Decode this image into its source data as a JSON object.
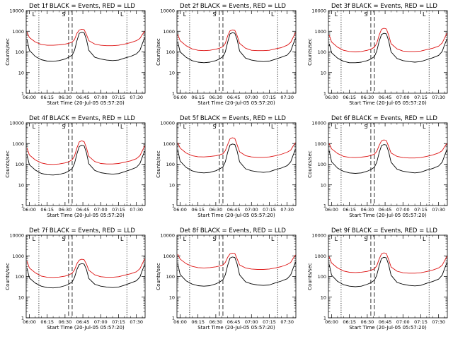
{
  "chart_data": {
    "type": "line",
    "shared": {
      "xlabel": "Start Time (20-Jul-05 05:57:20)",
      "ylabel": "Counts/sec",
      "y_scale": "log",
      "ylim": [
        1,
        10000
      ],
      "y_ticks": [
        1,
        10,
        100,
        1000,
        10000
      ],
      "y_tick_labels": [
        "1",
        "10",
        "100",
        "1000",
        "10000"
      ],
      "xlim": [
        "05:57:20",
        "07:37:20"
      ],
      "x_ticks": [
        "06:00",
        "06:15",
        "06:30",
        "06:45",
        "07:00",
        "07:15",
        "07:30"
      ],
      "markers": [
        {
          "label": "L",
          "time": "06:08",
          "style": "dotted"
        },
        {
          "label": "S",
          "time": "06:33",
          "style": "dashed"
        },
        {
          "label": "",
          "time": "06:36",
          "style": "dashed"
        },
        {
          "label": "L",
          "time": "07:22",
          "style": "dotted"
        }
      ],
      "colors": {
        "events": "#000000",
        "lld": "#dd1111"
      },
      "series_names": [
        "BLACK = Events",
        "RED = LLD"
      ],
      "x": [
        "05:58",
        "06:00",
        "06:05",
        "06:10",
        "06:15",
        "06:20",
        "06:25",
        "06:30",
        "06:33",
        "06:36",
        "06:38",
        "06:40",
        "06:42",
        "06:44",
        "06:46",
        "06:48",
        "06:50",
        "06:55",
        "07:00",
        "07:05",
        "07:10",
        "07:15",
        "07:20",
        "07:25",
        "07:30",
        "07:33",
        "07:35",
        "07:37"
      ]
    },
    "panels": [
      {
        "title": "Det 1f BLACK = Events, RED = LLD",
        "events": [
          400,
          120,
          60,
          42,
          36,
          35,
          38,
          45,
          55,
          70,
          120,
          350,
          800,
          900,
          850,
          400,
          120,
          55,
          45,
          40,
          38,
          40,
          50,
          60,
          80,
          120,
          250,
          500
        ],
        "lld": [
          900,
          500,
          300,
          230,
          210,
          210,
          220,
          240,
          260,
          300,
          400,
          800,
          1150,
          1250,
          1200,
          700,
          350,
          240,
          210,
          200,
          200,
          210,
          240,
          280,
          350,
          450,
          700,
          1000
        ]
      },
      {
        "title": "Det 2f BLACK = Events, RED = LLD",
        "events": [
          300,
          100,
          55,
          38,
          32,
          30,
          32,
          38,
          45,
          60,
          100,
          300,
          750,
          850,
          800,
          380,
          110,
          50,
          40,
          36,
          34,
          36,
          44,
          55,
          70,
          110,
          230,
          450
        ],
        "lld": [
          700,
          350,
          200,
          140,
          120,
          115,
          120,
          135,
          150,
          180,
          260,
          600,
          1050,
          1150,
          1100,
          600,
          260,
          150,
          120,
          115,
          115,
          120,
          140,
          160,
          210,
          290,
          500,
          850
        ]
      },
      {
        "title": "Det 3f BLACK = Events, RED = LLD",
        "events": [
          250,
          90,
          50,
          35,
          30,
          30,
          32,
          38,
          45,
          60,
          110,
          330,
          700,
          800,
          750,
          350,
          100,
          48,
          38,
          34,
          32,
          34,
          42,
          52,
          68,
          105,
          220,
          420
        ],
        "lld": [
          650,
          300,
          170,
          120,
          105,
          100,
          105,
          120,
          135,
          170,
          260,
          650,
          1250,
          1400,
          1300,
          650,
          250,
          140,
          110,
          105,
          105,
          110,
          130,
          150,
          190,
          270,
          470,
          800
        ]
      },
      {
        "title": "Det 4f BLACK = Events, RED = LLD",
        "events": [
          280,
          95,
          52,
          36,
          31,
          30,
          32,
          38,
          46,
          62,
          110,
          320,
          720,
          820,
          780,
          360,
          105,
          50,
          39,
          35,
          33,
          35,
          43,
          54,
          70,
          108,
          225,
          430
        ],
        "lld": [
          600,
          280,
          160,
          115,
          100,
          98,
          102,
          115,
          130,
          165,
          250,
          620,
          1200,
          1350,
          1250,
          620,
          240,
          135,
          108,
          102,
          102,
          108,
          125,
          145,
          185,
          260,
          450,
          780
        ]
      },
      {
        "title": "Det 5f BLACK = Events, RED = LLD",
        "events": [
          500,
          140,
          70,
          48,
          40,
          38,
          40,
          48,
          58,
          75,
          130,
          380,
          850,
          950,
          900,
          420,
          130,
          60,
          48,
          43,
          40,
          43,
          54,
          65,
          85,
          130,
          270,
          520
        ],
        "lld": [
          1100,
          600,
          350,
          260,
          230,
          225,
          235,
          255,
          280,
          320,
          450,
          900,
          1700,
          1900,
          1750,
          850,
          400,
          260,
          225,
          215,
          215,
          225,
          255,
          300,
          380,
          480,
          750,
          1100
        ]
      },
      {
        "title": "Det 6f BLACK = Events, RED = LLD",
        "events": [
          450,
          130,
          65,
          45,
          38,
          36,
          38,
          46,
          55,
          72,
          125,
          360,
          800,
          900,
          850,
          400,
          125,
          57,
          46,
          41,
          38,
          41,
          52,
          62,
          82,
          125,
          260,
          500
        ],
        "lld": [
          1000,
          550,
          330,
          240,
          215,
          210,
          220,
          240,
          265,
          305,
          420,
          820,
          1350,
          1500,
          1400,
          720,
          350,
          240,
          210,
          200,
          200,
          210,
          240,
          280,
          350,
          450,
          700,
          1000
        ]
      },
      {
        "title": "Det 7f BLACK = Events, RED = LLD",
        "events": [
          260,
          85,
          48,
          34,
          29,
          28,
          30,
          36,
          42,
          55,
          90,
          220,
          380,
          420,
          400,
          220,
          80,
          42,
          34,
          31,
          29,
          31,
          38,
          48,
          62,
          95,
          200,
          380
        ],
        "lld": [
          550,
          260,
          150,
          105,
          92,
          90,
          94,
          105,
          118,
          145,
          210,
          420,
          620,
          680,
          650,
          400,
          200,
          120,
          98,
          92,
          92,
          98,
          115,
          135,
          170,
          240,
          420,
          720
        ]
      },
      {
        "title": "Det 8f BLACK = Events, RED = LLD",
        "events": [
          420,
          125,
          62,
          43,
          36,
          34,
          36,
          44,
          53,
          70,
          120,
          350,
          780,
          880,
          830,
          390,
          120,
          55,
          44,
          39,
          37,
          39,
          49,
          60,
          78,
          120,
          250,
          480
        ],
        "lld": [
          1200,
          700,
          420,
          310,
          270,
          260,
          270,
          295,
          320,
          360,
          480,
          850,
          1250,
          1350,
          1300,
          700,
          360,
          260,
          230,
          220,
          220,
          230,
          260,
          300,
          380,
          480,
          750,
          1100
        ]
      },
      {
        "title": "Det 9f BLACK = Events, RED = LLD",
        "events": [
          380,
          115,
          58,
          40,
          34,
          32,
          34,
          42,
          50,
          66,
          115,
          330,
          750,
          850,
          800,
          370,
          115,
          52,
          42,
          37,
          35,
          37,
          47,
          57,
          75,
          115,
          240,
          460
        ],
        "lld": [
          900,
          450,
          260,
          185,
          160,
          155,
          162,
          178,
          198,
          235,
          330,
          700,
          1250,
          1400,
          1300,
          650,
          290,
          180,
          152,
          145,
          145,
          152,
          175,
          205,
          260,
          350,
          580,
          950
        ]
      }
    ]
  }
}
